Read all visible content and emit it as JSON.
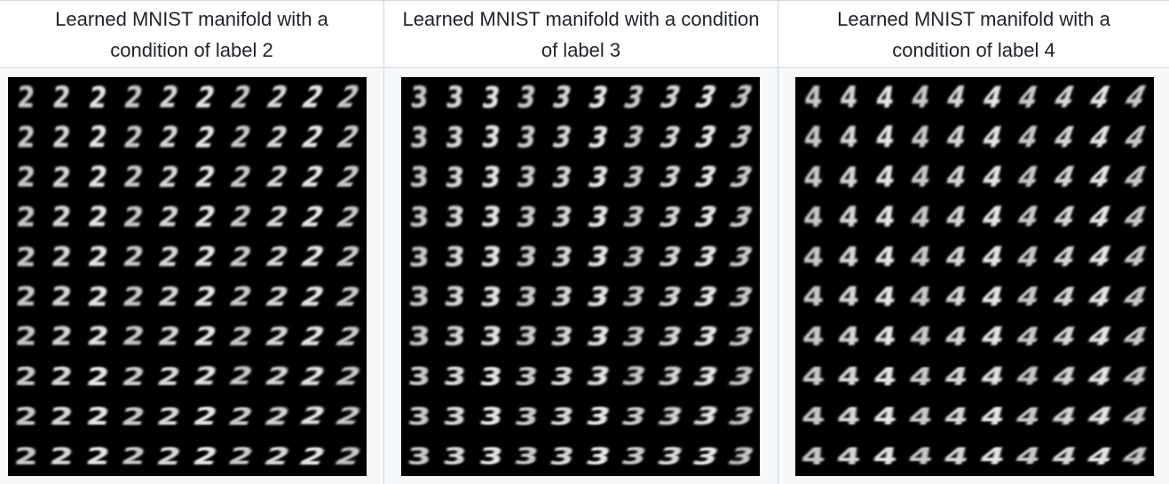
{
  "panels": [
    {
      "title": "Learned MNIST manifold with a condition of label 2",
      "image_alt": "MNIST manifold grid for label 2",
      "digit": "2",
      "rows": 10,
      "cols": 10
    },
    {
      "title": "Learned MNIST manifold with a condition of label 3",
      "image_alt": "MNIST manifold grid for label 3",
      "digit": "3",
      "rows": 10,
      "cols": 10
    },
    {
      "title": "Learned MNIST manifold with a condition of label 4",
      "image_alt": "MNIST manifold grid for label 4",
      "digit": "4",
      "rows": 10,
      "cols": 10
    }
  ]
}
